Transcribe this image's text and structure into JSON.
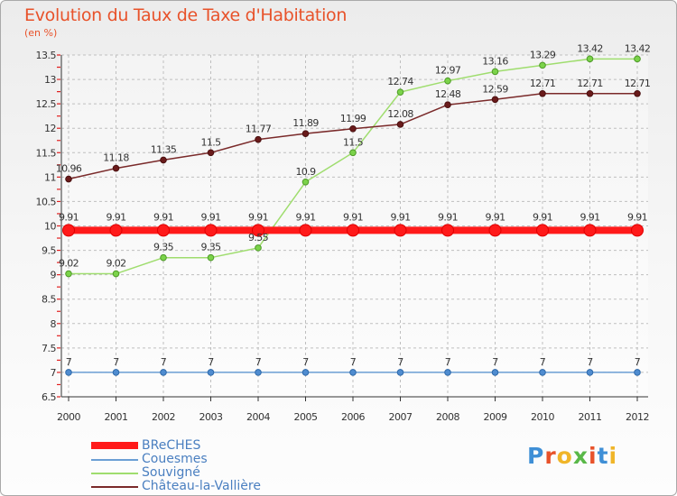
{
  "chart": {
    "title": "Evolution du Taux de Taxe d'Habitation",
    "unit": "(en %)"
  },
  "logo": {
    "text": "Proxiti",
    "letter_colors": [
      "#3f8fd6",
      "#e8522a",
      "#f0b528",
      "#59b848",
      "#e8522a",
      "#3f8fd6",
      "#f0b528"
    ]
  },
  "colors": {
    "grid": "#bfbfbf",
    "axis_tick_red": "#e02020",
    "label_text": "#333333"
  },
  "chart_data": {
    "type": "line",
    "title": "Evolution du Taux de Taxe d'Habitation",
    "ylabel": "(en %)",
    "x": [
      "2000",
      "2001",
      "2002",
      "2003",
      "2004",
      "2005",
      "2006",
      "2007",
      "2008",
      "2009",
      "2010",
      "2011",
      "2012"
    ],
    "ylim": [
      6.5,
      13.5
    ],
    "yticks": [
      "6.5",
      "7",
      "7.5",
      "8",
      "8.5",
      "9",
      "9.5",
      "10",
      "10.5",
      "11",
      "11.5",
      "12",
      "12.5",
      "13",
      "13.5"
    ],
    "grid": true,
    "legend": "bottom-left",
    "series": [
      {
        "name": "BReCHES",
        "color": "#ff1a1a",
        "values": [
          9.91,
          9.91,
          9.91,
          9.91,
          9.91,
          9.91,
          9.91,
          9.91,
          9.91,
          9.91,
          9.91,
          9.91,
          9.91
        ],
        "labels": [
          "9.91",
          "9.91",
          "9.91",
          "9.91",
          "9.91",
          "9.91",
          "9.91",
          "9.91",
          "9.91",
          "9.91",
          "9.91",
          "9.91",
          "9.91"
        ]
      },
      {
        "name": "Couesmes",
        "color": "#6b9fd4",
        "values": [
          7,
          7,
          7,
          7,
          7,
          7,
          7,
          7,
          7,
          7,
          7,
          7,
          7
        ],
        "labels": [
          "7",
          "7",
          "7",
          "7",
          "7",
          "7",
          "7",
          "7",
          "7",
          "7",
          "7",
          "7",
          "7"
        ]
      },
      {
        "name": "Souvigné",
        "color": "#9fdd6e",
        "values": [
          9.02,
          9.02,
          9.35,
          9.35,
          9.55,
          10.9,
          11.5,
          12.74,
          12.97,
          13.16,
          13.29,
          13.42,
          13.42
        ],
        "labels": [
          "9.02",
          "9.02",
          "9.35",
          "9.35",
          "9.55",
          "10.9",
          "11.5",
          "12.74",
          "12.97",
          "13.16",
          "13.29",
          "13.42",
          "13.42"
        ]
      },
      {
        "name": "Château-la-Vallière",
        "color": "#7a2a2a",
        "values": [
          10.96,
          11.18,
          11.35,
          11.5,
          11.77,
          11.89,
          11.99,
          12.08,
          12.48,
          12.59,
          12.71,
          12.71,
          12.71
        ],
        "labels": [
          "10.96",
          "11.18",
          "11.35",
          "11.5",
          "11.77",
          "11.89",
          "11.99",
          "12.08",
          "12.48",
          "12.59",
          "12.71",
          "12.71",
          "12.71"
        ]
      }
    ]
  }
}
